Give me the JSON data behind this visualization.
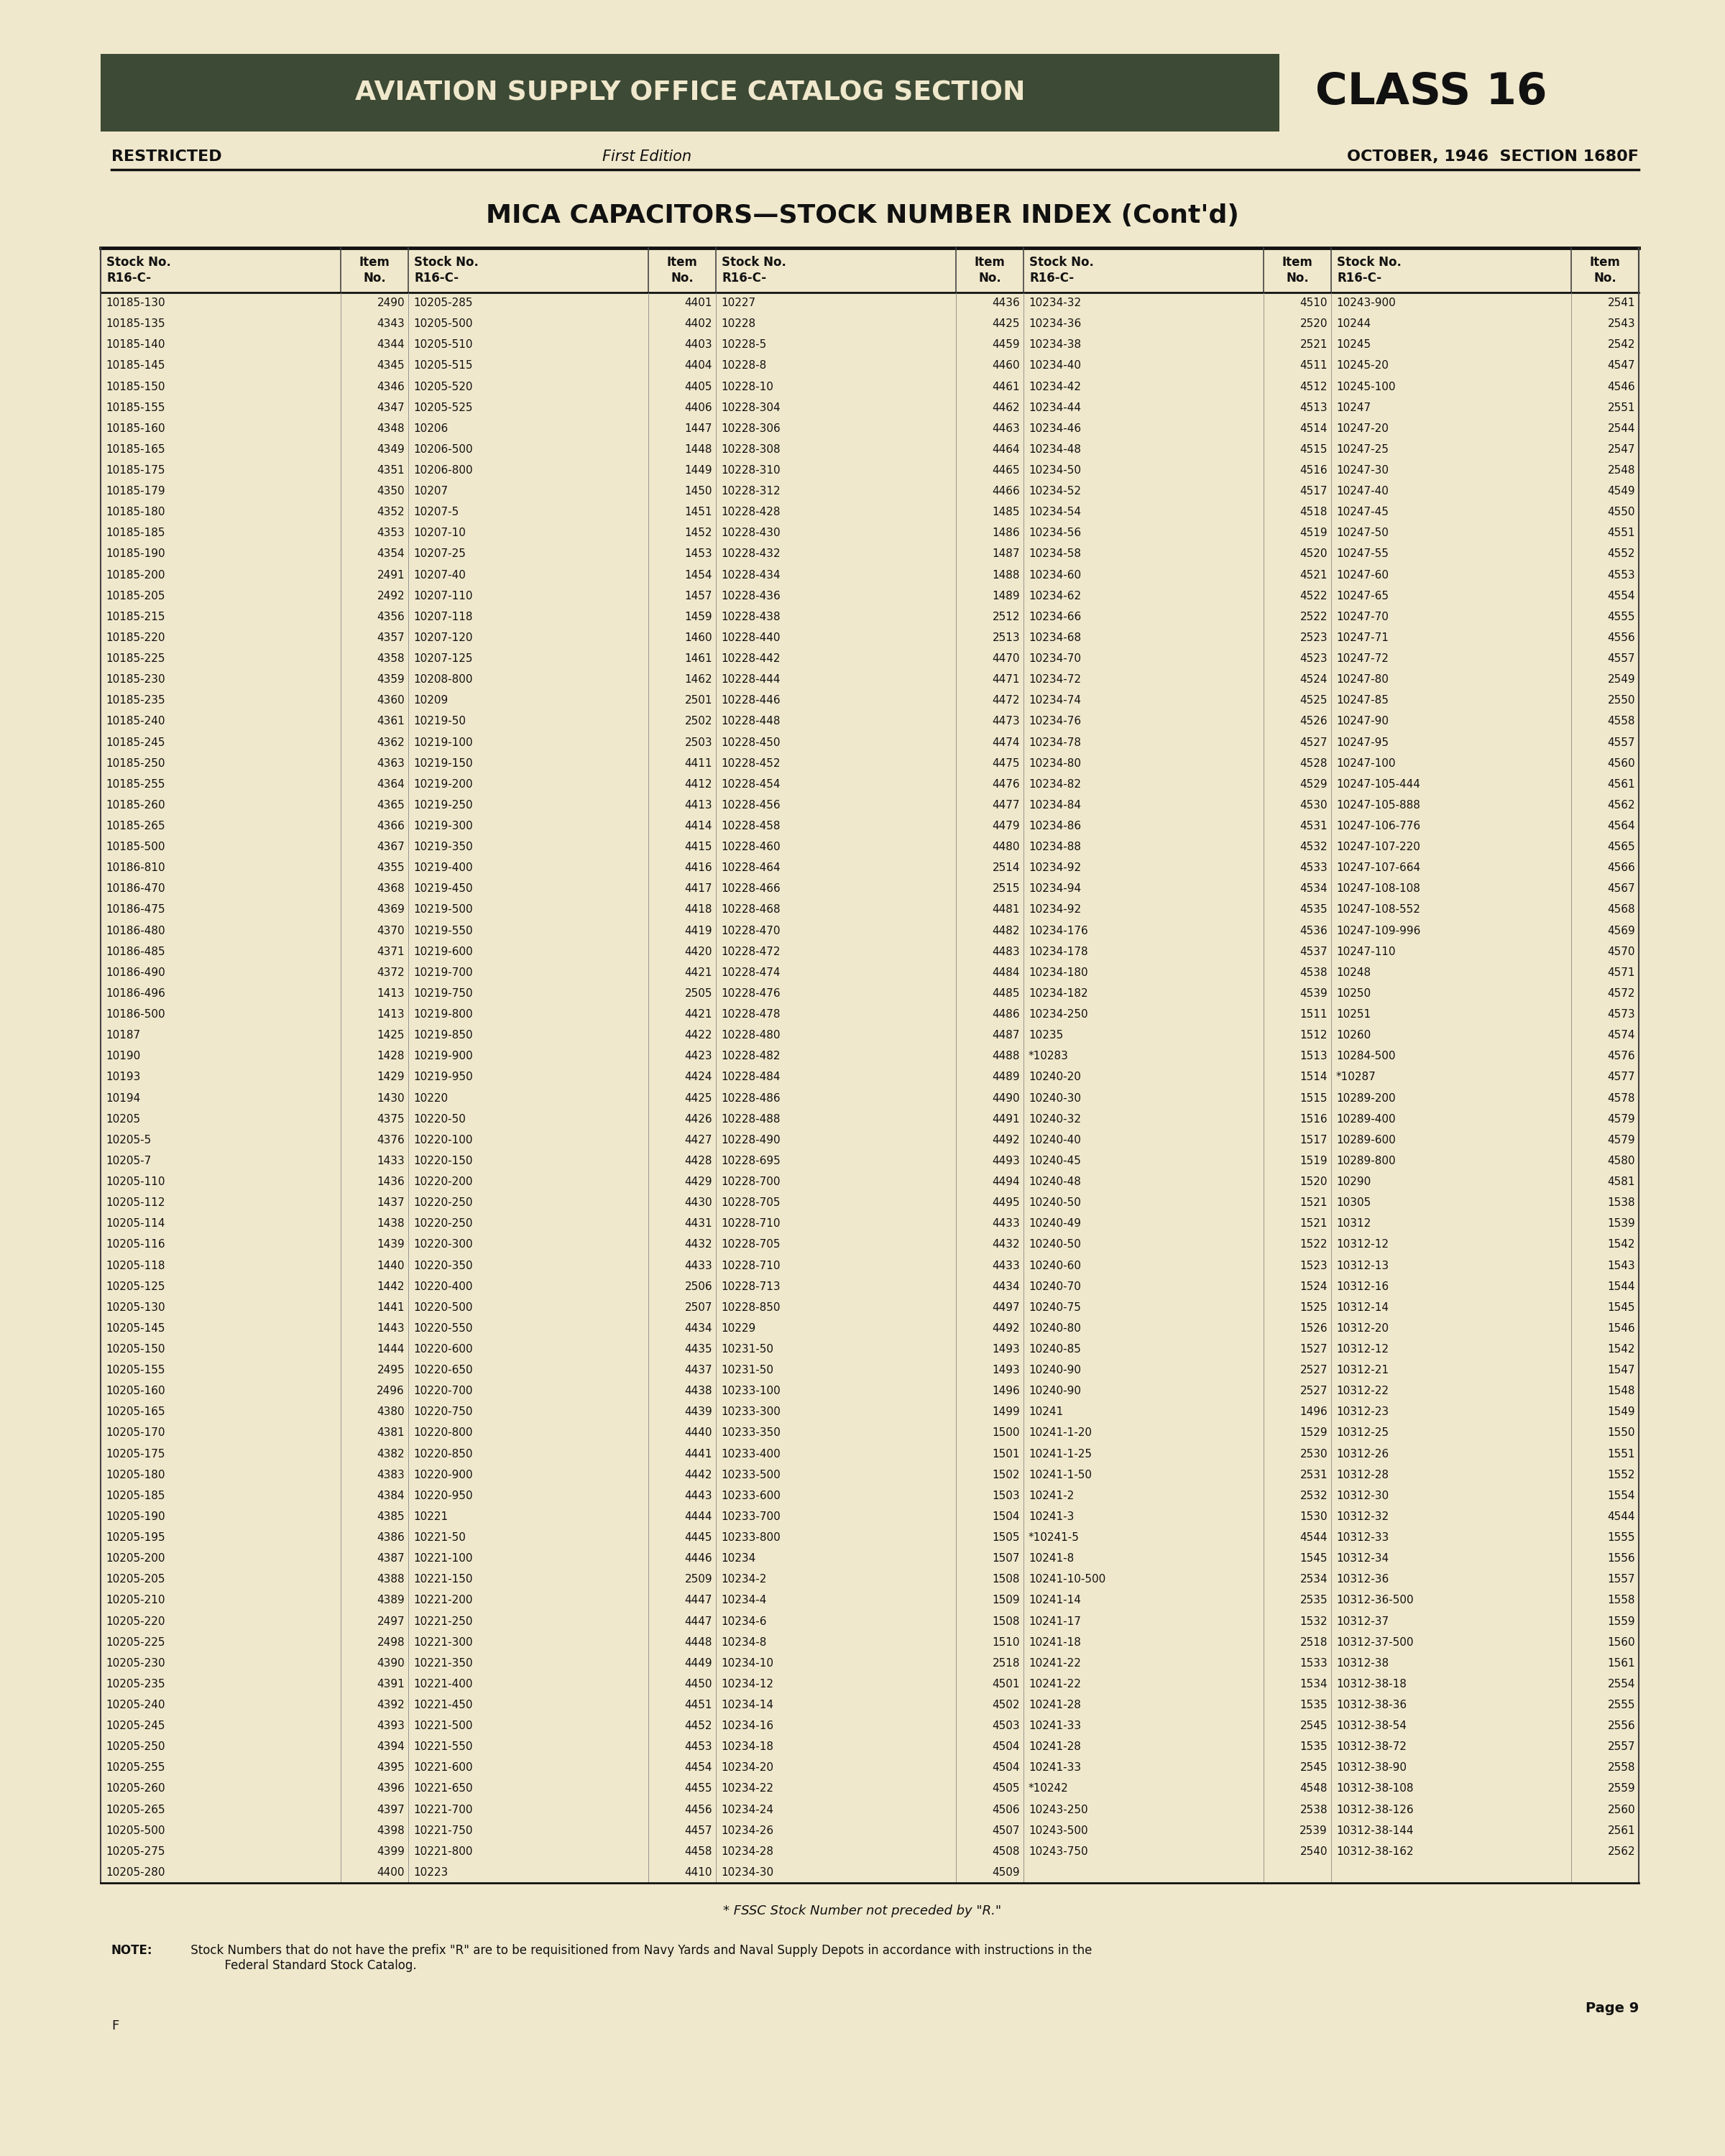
{
  "bg_color": "#f0e8cc",
  "header_bg": "#3d4a35",
  "header_text_color": "#f0e8cc",
  "header_title": "AVIATION SUPPLY OFFICE CATALOG SECTION",
  "header_class": "CLASS 16",
  "restricted": "RESTRICTED",
  "edition": "First Edition",
  "date_section": "OCTOBER, 1946  SECTION 1680F",
  "main_title": "MICA CAPACITORS—STOCK NUMBER INDEX (Cont'd)",
  "col_headers": [
    "Stock No.\nR16-C-",
    "Item\nNo.",
    "Stock No.\nR16-C-",
    "Item\nNo.",
    "Stock No.\nR16-C-",
    "Item\nNo.",
    "Stock No.\nR16-C-",
    "Item\nNo.",
    "Stock No.\nR16-C-",
    "Item\nNo."
  ],
  "note": "* FSSC Stock Number not preceded by \"R.\"",
  "note2_bold": "NOTE:",
  "note2_rest": " Stock Numbers that do not have the prefix \"R\" are to be requisitioned from Navy Yards and Naval Supply Depots in accordance with instructions in the\n          Federal Standard Stock Catalog.",
  "page": "Page 9",
  "f_label": "F",
  "table_data": [
    [
      "10185-130",
      "2490",
      "10205-285",
      "4401",
      "10227",
      "4436",
      "10234-32",
      "4510",
      "10243-900",
      "2541"
    ],
    [
      "10185-135",
      "4343",
      "10205-500",
      "4402",
      "10228",
      "4425",
      "10234-36",
      "2520",
      "10244",
      "2543"
    ],
    [
      "10185-140",
      "4344",
      "10205-510",
      "4403",
      "10228-5",
      "4459",
      "10234-38",
      "2521",
      "10245",
      "2542"
    ],
    [
      "10185-145",
      "4345",
      "10205-515",
      "4404",
      "10228-8",
      "4460",
      "10234-40",
      "4511",
      "10245-20",
      "4547"
    ],
    [
      "10185-150",
      "4346",
      "10205-520",
      "4405",
      "10228-10",
      "4461",
      "10234-42",
      "4512",
      "10245-100",
      "4546"
    ],
    [
      "10185-155",
      "4347",
      "10205-525",
      "4406",
      "10228-304",
      "4462",
      "10234-44",
      "4513",
      "10247",
      "2551"
    ],
    [
      "10185-160",
      "4348",
      "10206",
      "1447",
      "10228-306",
      "4463",
      "10234-46",
      "4514",
      "10247-20",
      "2544"
    ],
    [
      "10185-165",
      "4349",
      "10206-500",
      "1448",
      "10228-308",
      "4464",
      "10234-48",
      "4515",
      "10247-25",
      "2547"
    ],
    [
      "10185-175",
      "4351",
      "10206-800",
      "1449",
      "10228-310",
      "4465",
      "10234-50",
      "4516",
      "10247-30",
      "2548"
    ],
    [
      "10185-179",
      "4350",
      "10207",
      "1450",
      "10228-312",
      "4466",
      "10234-52",
      "4517",
      "10247-40",
      "4549"
    ],
    [
      "10185-180",
      "4352",
      "10207-5",
      "1451",
      "10228-428",
      "1485",
      "10234-54",
      "4518",
      "10247-45",
      "4550"
    ],
    [
      "10185-185",
      "4353",
      "10207-10",
      "1452",
      "10228-430",
      "1486",
      "10234-56",
      "4519",
      "10247-50",
      "4551"
    ],
    [
      "10185-190",
      "4354",
      "10207-25",
      "1453",
      "10228-432",
      "1487",
      "10234-58",
      "4520",
      "10247-55",
      "4552"
    ],
    [
      "10185-200",
      "2491",
      "10207-40",
      "1454",
      "10228-434",
      "1488",
      "10234-60",
      "4521",
      "10247-60",
      "4553"
    ],
    [
      "10185-205",
      "2492",
      "10207-110",
      "1457",
      "10228-436",
      "1489",
      "10234-62",
      "4522",
      "10247-65",
      "4554"
    ],
    [
      "10185-215",
      "4356",
      "10207-118",
      "1459",
      "10228-438",
      "2512",
      "10234-66",
      "2522",
      "10247-70",
      "4555"
    ],
    [
      "10185-220",
      "4357",
      "10207-120",
      "1460",
      "10228-440",
      "2513",
      "10234-68",
      "2523",
      "10247-71",
      "4556"
    ],
    [
      "10185-225",
      "4358",
      "10207-125",
      "1461",
      "10228-442",
      "4470",
      "10234-70",
      "4523",
      "10247-72",
      "4557"
    ],
    [
      "10185-230",
      "4359",
      "10208-800",
      "1462",
      "10228-444",
      "4471",
      "10234-72",
      "4524",
      "10247-80",
      "2549"
    ],
    [
      "10185-235",
      "4360",
      "10209",
      "2501",
      "10228-446",
      "4472",
      "10234-74",
      "4525",
      "10247-85",
      "2550"
    ],
    [
      "10185-240",
      "4361",
      "10219-50",
      "2502",
      "10228-448",
      "4473",
      "10234-76",
      "4526",
      "10247-90",
      "4558"
    ],
    [
      "10185-245",
      "4362",
      "10219-100",
      "2503",
      "10228-450",
      "4474",
      "10234-78",
      "4527",
      "10247-95",
      "4557"
    ],
    [
      "10185-250",
      "4363",
      "10219-150",
      "4411",
      "10228-452",
      "4475",
      "10234-80",
      "4528",
      "10247-100",
      "4560"
    ],
    [
      "10185-255",
      "4364",
      "10219-200",
      "4412",
      "10228-454",
      "4476",
      "10234-82",
      "4529",
      "10247-105-444",
      "4561"
    ],
    [
      "10185-260",
      "4365",
      "10219-250",
      "4413",
      "10228-456",
      "4477",
      "10234-84",
      "4530",
      "10247-105-888",
      "4562"
    ],
    [
      "10185-265",
      "4366",
      "10219-300",
      "4414",
      "10228-458",
      "4479",
      "10234-86",
      "4531",
      "10247-106-776",
      "4564"
    ],
    [
      "10185-500",
      "4367",
      "10219-350",
      "4415",
      "10228-460",
      "4480",
      "10234-88",
      "4532",
      "10247-107-220",
      "4565"
    ],
    [
      "10186-810",
      "4355",
      "10219-400",
      "4416",
      "10228-464",
      "2514",
      "10234-92",
      "4533",
      "10247-107-664",
      "4566"
    ],
    [
      "10186-470",
      "4368",
      "10219-450",
      "4417",
      "10228-466",
      "2515",
      "10234-94",
      "4534",
      "10247-108-108",
      "4567"
    ],
    [
      "10186-475",
      "4369",
      "10219-500",
      "4418",
      "10228-468",
      "4481",
      "10234-92",
      "4535",
      "10247-108-552",
      "4568"
    ],
    [
      "10186-480",
      "4370",
      "10219-550",
      "4419",
      "10228-470",
      "4482",
      "10234-176",
      "4536",
      "10247-109-996",
      "4569"
    ],
    [
      "10186-485",
      "4371",
      "10219-600",
      "4420",
      "10228-472",
      "4483",
      "10234-178",
      "4537",
      "10247-110",
      "4570"
    ],
    [
      "10186-490",
      "4372",
      "10219-700",
      "4421",
      "10228-474",
      "4484",
      "10234-180",
      "4538",
      "10248",
      "4571"
    ],
    [
      "10186-496",
      "1413",
      "10219-750",
      "2505",
      "10228-476",
      "4485",
      "10234-182",
      "4539",
      "10250",
      "4572"
    ],
    [
      "10186-500",
      "1413",
      "10219-800",
      "4421",
      "10228-478",
      "4486",
      "10234-250",
      "1511",
      "10251",
      "4573"
    ],
    [
      "10187",
      "1425",
      "10219-850",
      "4422",
      "10228-480",
      "4487",
      "10235",
      "1512",
      "10260",
      "4574"
    ],
    [
      "10190",
      "1428",
      "10219-900",
      "4423",
      "10228-482",
      "4488",
      "*10283",
      "1513",
      "10284-500",
      "4576"
    ],
    [
      "10193",
      "1429",
      "10219-950",
      "4424",
      "10228-484",
      "4489",
      "10240-20",
      "1514",
      "*10287",
      "4577"
    ],
    [
      "10194",
      "1430",
      "10220",
      "4425",
      "10228-486",
      "4490",
      "10240-30",
      "1515",
      "10289-200",
      "4578"
    ],
    [
      "10205",
      "4375",
      "10220-50",
      "4426",
      "10228-488",
      "4491",
      "10240-32",
      "1516",
      "10289-400",
      "4579"
    ],
    [
      "10205-5",
      "4376",
      "10220-100",
      "4427",
      "10228-490",
      "4492",
      "10240-40",
      "1517",
      "10289-600",
      "4579"
    ],
    [
      "10205-7",
      "1433",
      "10220-150",
      "4428",
      "10228-695",
      "4493",
      "10240-45",
      "1519",
      "10289-800",
      "4580"
    ],
    [
      "10205-110",
      "1436",
      "10220-200",
      "4429",
      "10228-700",
      "4494",
      "10240-48",
      "1520",
      "10290",
      "4581"
    ],
    [
      "10205-112",
      "1437",
      "10220-250",
      "4430",
      "10228-705",
      "4495",
      "10240-50",
      "1521",
      "10305",
      "1538"
    ],
    [
      "10205-114",
      "1438",
      "10220-250",
      "4431",
      "10228-710",
      "4433",
      "10240-49",
      "1521",
      "10312",
      "1539"
    ],
    [
      "10205-116",
      "1439",
      "10220-300",
      "4432",
      "10228-705",
      "4432",
      "10240-50",
      "1522",
      "10312-12",
      "1542"
    ],
    [
      "10205-118",
      "1440",
      "10220-350",
      "4433",
      "10228-710",
      "4433",
      "10240-60",
      "1523",
      "10312-13",
      "1543"
    ],
    [
      "10205-125",
      "1442",
      "10220-400",
      "2506",
      "10228-713",
      "4434",
      "10240-70",
      "1524",
      "10312-16",
      "1544"
    ],
    [
      "10205-130",
      "1441",
      "10220-500",
      "2507",
      "10228-850",
      "4497",
      "10240-75",
      "1525",
      "10312-14",
      "1545"
    ],
    [
      "10205-145",
      "1443",
      "10220-550",
      "4434",
      "10229",
      "4492",
      "10240-80",
      "1526",
      "10312-20",
      "1546"
    ],
    [
      "10205-150",
      "1444",
      "10220-600",
      "4435",
      "10231-50",
      "1493",
      "10240-85",
      "1527",
      "10312-12",
      "1542"
    ],
    [
      "10205-155",
      "2495",
      "10220-650",
      "4437",
      "10231-50",
      "1493",
      "10240-90",
      "2527",
      "10312-21",
      "1547"
    ],
    [
      "10205-160",
      "2496",
      "10220-700",
      "4438",
      "10233-100",
      "1496",
      "10240-90",
      "2527",
      "10312-22",
      "1548"
    ],
    [
      "10205-165",
      "4380",
      "10220-750",
      "4439",
      "10233-300",
      "1499",
      "10241",
      "1496",
      "10312-23",
      "1549"
    ],
    [
      "10205-170",
      "4381",
      "10220-800",
      "4440",
      "10233-350",
      "1500",
      "10241-1-20",
      "1529",
      "10312-25",
      "1550"
    ],
    [
      "10205-175",
      "4382",
      "10220-850",
      "4441",
      "10233-400",
      "1501",
      "10241-1-25",
      "2530",
      "10312-26",
      "1551"
    ],
    [
      "10205-180",
      "4383",
      "10220-900",
      "4442",
      "10233-500",
      "1502",
      "10241-1-50",
      "2531",
      "10312-28",
      "1552"
    ],
    [
      "10205-185",
      "4384",
      "10220-950",
      "4443",
      "10233-600",
      "1503",
      "10241-2",
      "2532",
      "10312-30",
      "1554"
    ],
    [
      "10205-190",
      "4385",
      "10221",
      "4444",
      "10233-700",
      "1504",
      "10241-3",
      "1530",
      "10312-32",
      "4544"
    ],
    [
      "10205-195",
      "4386",
      "10221-50",
      "4445",
      "10233-800",
      "1505",
      "*10241-5",
      "4544",
      "10312-33",
      "1555"
    ],
    [
      "10205-200",
      "4387",
      "10221-100",
      "4446",
      "10234",
      "1507",
      "10241-8",
      "1545",
      "10312-34",
      "1556"
    ],
    [
      "10205-205",
      "4388",
      "10221-150",
      "2509",
      "10234-2",
      "1508",
      "10241-10-500",
      "2534",
      "10312-36",
      "1557"
    ],
    [
      "10205-210",
      "4389",
      "10221-200",
      "4447",
      "10234-4",
      "1509",
      "10241-14",
      "2535",
      "10312-36-500",
      "1558"
    ],
    [
      "10205-220",
      "2497",
      "10221-250",
      "4447",
      "10234-6",
      "1508",
      "10241-17",
      "1532",
      "10312-37",
      "1559"
    ],
    [
      "10205-225",
      "2498",
      "10221-300",
      "4448",
      "10234-8",
      "1510",
      "10241-18",
      "2518",
      "10312-37-500",
      "1560"
    ],
    [
      "10205-230",
      "4390",
      "10221-350",
      "4449",
      "10234-10",
      "2518",
      "10241-22",
      "1533",
      "10312-38",
      "1561"
    ],
    [
      "10205-235",
      "4391",
      "10221-400",
      "4450",
      "10234-12",
      "4501",
      "10241-22",
      "1534",
      "10312-38-18",
      "2554"
    ],
    [
      "10205-240",
      "4392",
      "10221-450",
      "4451",
      "10234-14",
      "4502",
      "10241-28",
      "1535",
      "10312-38-36",
      "2555"
    ],
    [
      "10205-245",
      "4393",
      "10221-500",
      "4452",
      "10234-16",
      "4503",
      "10241-33",
      "2545",
      "10312-38-54",
      "2556"
    ],
    [
      "10205-250",
      "4394",
      "10221-550",
      "4453",
      "10234-18",
      "4504",
      "10241-28",
      "1535",
      "10312-38-72",
      "2557"
    ],
    [
      "10205-255",
      "4395",
      "10221-600",
      "4454",
      "10234-20",
      "4504",
      "10241-33",
      "2545",
      "10312-38-90",
      "2558"
    ],
    [
      "10205-260",
      "4396",
      "10221-650",
      "4455",
      "10234-22",
      "4505",
      "*10242",
      "4548",
      "10312-38-108",
      "2559"
    ],
    [
      "10205-265",
      "4397",
      "10221-700",
      "4456",
      "10234-24",
      "4506",
      "10243-250",
      "2538",
      "10312-38-126",
      "2560"
    ],
    [
      "10205-500",
      "4398",
      "10221-750",
      "4457",
      "10234-26",
      "4507",
      "10243-500",
      "2539",
      "10312-38-144",
      "2561"
    ],
    [
      "10205-275",
      "4399",
      "10221-800",
      "4458",
      "10234-28",
      "4508",
      "10243-750",
      "2540",
      "10312-38-162",
      "2562"
    ],
    [
      "10205-280",
      "4400",
      "10223",
      "4410",
      "10234-30",
      "4509",
      "",
      "",
      "",
      ""
    ]
  ]
}
